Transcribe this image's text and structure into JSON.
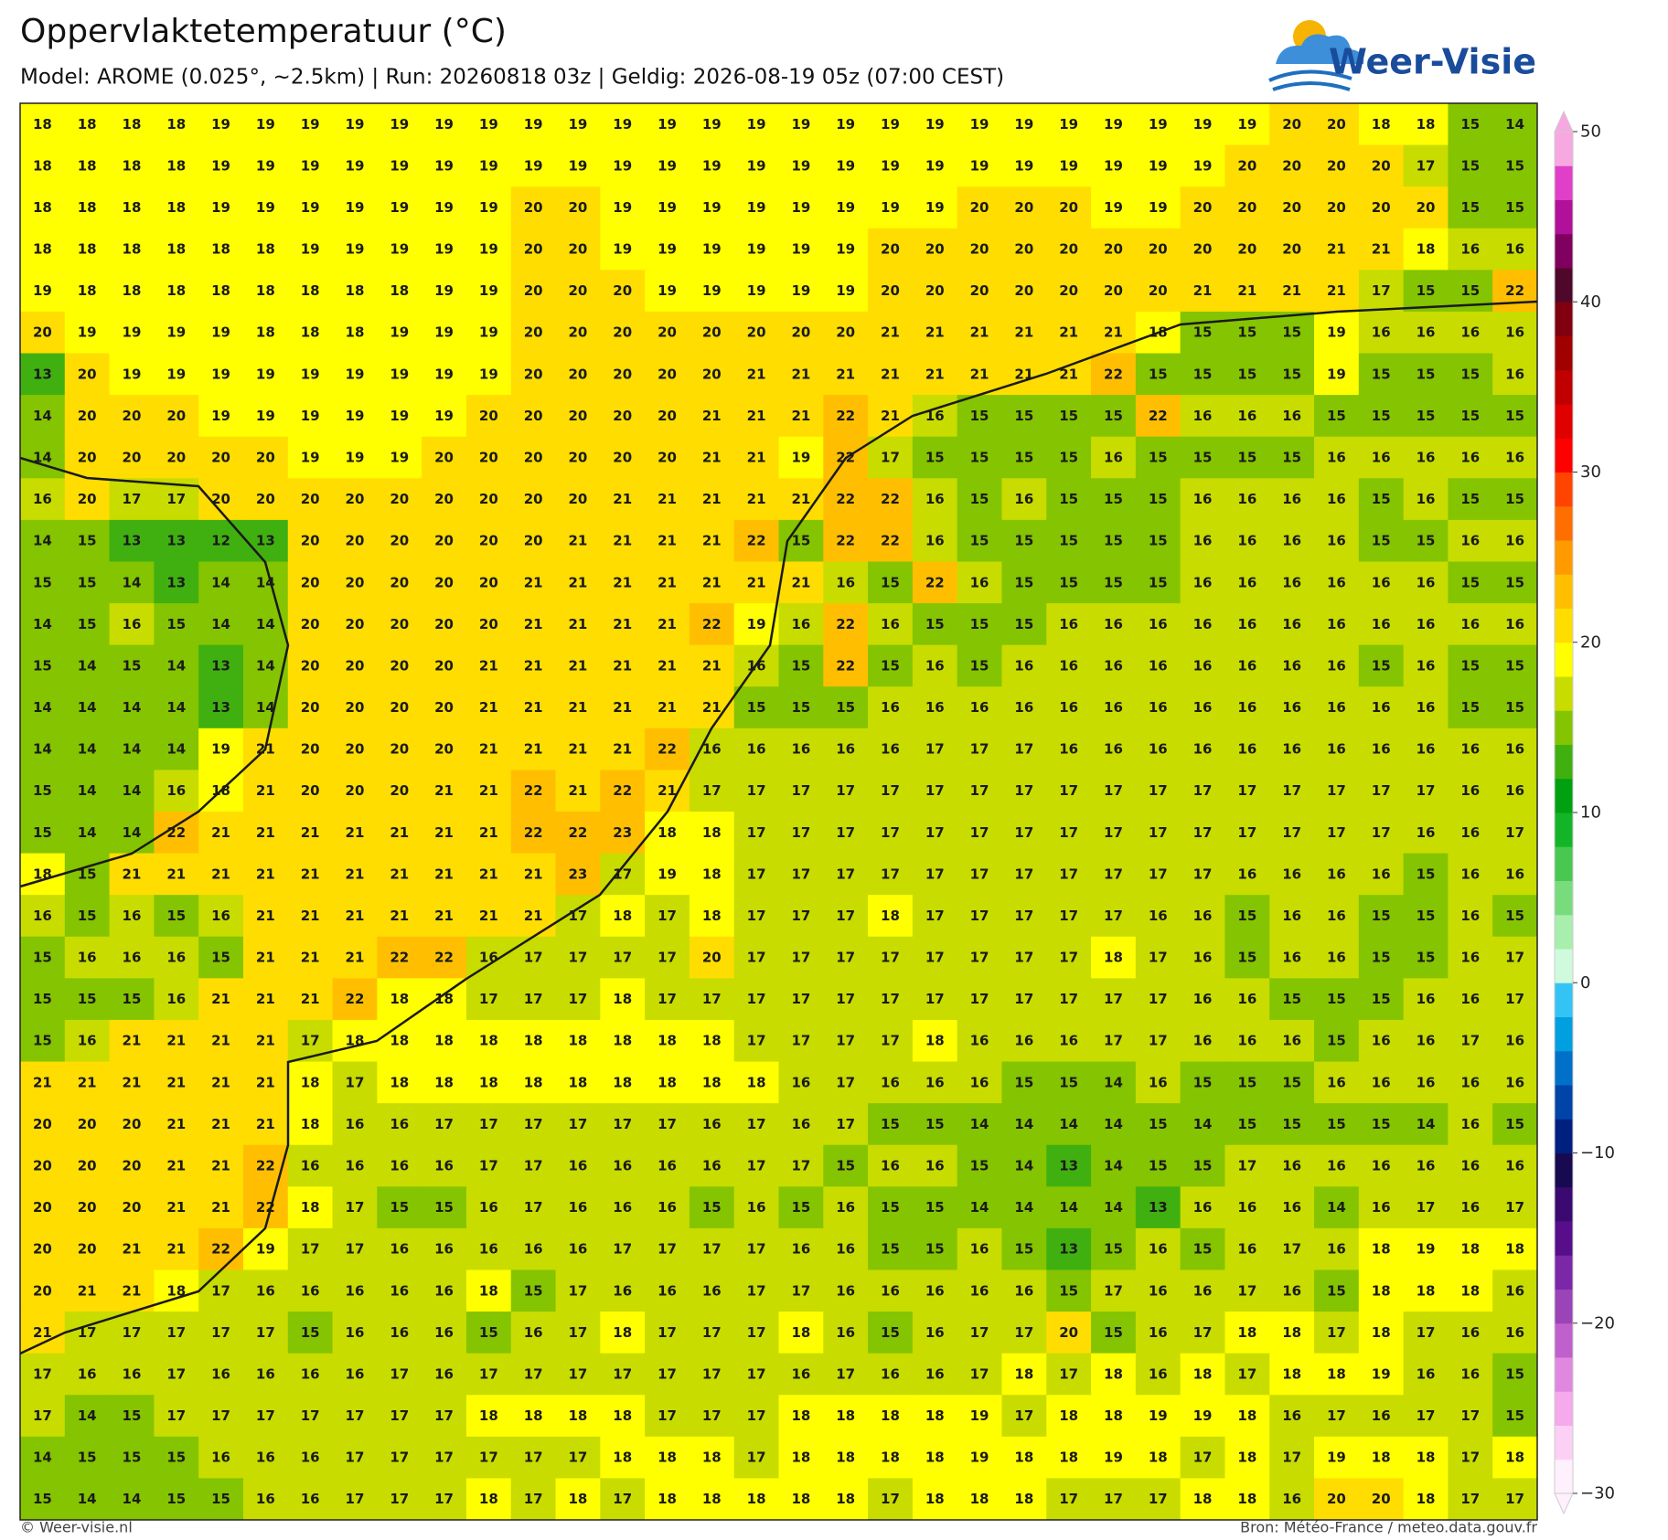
{
  "chart_data": {
    "type": "heatmap",
    "title": "Oppervlaktetemperatuur (°C)",
    "subtitle": "Model: AROME (0.025°, ~2.5km)  |  Run: 20260818 03z  |  Geldig: 2026-08-19 05z (07:00 CEST)",
    "brand": "Weer-Visie",
    "footer_left": "© Weer-visie.nl",
    "footer_right": "Bron: Météo-France / meteo.data.gouv.fr",
    "values": [
      [
        18,
        18,
        18,
        18,
        19,
        19,
        19,
        19,
        19,
        19,
        19,
        19,
        19,
        19,
        19,
        19,
        19,
        19,
        19,
        19,
        19,
        19,
        19,
        19,
        19,
        19,
        19,
        19,
        20,
        20,
        18,
        18,
        15,
        14
      ],
      [
        18,
        18,
        18,
        18,
        19,
        19,
        19,
        19,
        19,
        19,
        19,
        19,
        19,
        19,
        19,
        19,
        19,
        19,
        19,
        19,
        19,
        19,
        19,
        19,
        19,
        19,
        19,
        20,
        20,
        20,
        20,
        17,
        15,
        15
      ],
      [
        18,
        18,
        18,
        18,
        19,
        19,
        19,
        19,
        19,
        19,
        19,
        20,
        20,
        19,
        19,
        19,
        19,
        19,
        19,
        19,
        19,
        20,
        20,
        20,
        19,
        19,
        20,
        20,
        20,
        20,
        20,
        20,
        15,
        15
      ],
      [
        18,
        18,
        18,
        18,
        18,
        18,
        19,
        19,
        19,
        19,
        19,
        20,
        20,
        19,
        19,
        19,
        19,
        19,
        19,
        20,
        20,
        20,
        20,
        20,
        20,
        20,
        20,
        20,
        20,
        21,
        21,
        18,
        16,
        16
      ],
      [
        19,
        18,
        18,
        18,
        18,
        18,
        18,
        18,
        18,
        19,
        19,
        20,
        20,
        20,
        19,
        19,
        19,
        19,
        19,
        20,
        20,
        20,
        20,
        20,
        20,
        20,
        21,
        21,
        21,
        21,
        17,
        15,
        15,
        22
      ],
      [
        20,
        19,
        19,
        19,
        19,
        18,
        18,
        18,
        19,
        19,
        19,
        20,
        20,
        20,
        20,
        20,
        20,
        20,
        20,
        21,
        21,
        21,
        21,
        21,
        21,
        18,
        15,
        15,
        15,
        19,
        16,
        16,
        16,
        16
      ],
      [
        13,
        20,
        19,
        19,
        19,
        19,
        19,
        19,
        19,
        19,
        19,
        20,
        20,
        20,
        20,
        20,
        21,
        21,
        21,
        21,
        21,
        21,
        21,
        21,
        22,
        15,
        15,
        15,
        15,
        19,
        15,
        15,
        15,
        16
      ],
      [
        14,
        20,
        20,
        20,
        19,
        19,
        19,
        19,
        19,
        19,
        20,
        20,
        20,
        20,
        20,
        21,
        21,
        21,
        22,
        21,
        16,
        15,
        15,
        15,
        15,
        22,
        16,
        16,
        16,
        15,
        15,
        15,
        15,
        15
      ],
      [
        14,
        20,
        20,
        20,
        20,
        20,
        19,
        19,
        19,
        20,
        20,
        20,
        20,
        20,
        20,
        21,
        21,
        19,
        22,
        17,
        15,
        15,
        15,
        15,
        16,
        15,
        15,
        15,
        15,
        16,
        16,
        16,
        16,
        16
      ],
      [
        16,
        20,
        17,
        17,
        20,
        20,
        20,
        20,
        20,
        20,
        20,
        20,
        20,
        21,
        21,
        21,
        21,
        21,
        22,
        22,
        16,
        15,
        16,
        15,
        15,
        15,
        16,
        16,
        16,
        16,
        15,
        16,
        15,
        15
      ],
      [
        14,
        15,
        13,
        13,
        12,
        13,
        20,
        20,
        20,
        20,
        20,
        20,
        21,
        21,
        21,
        21,
        22,
        15,
        22,
        22,
        16,
        15,
        15,
        15,
        15,
        15,
        16,
        16,
        16,
        16,
        15,
        15,
        16,
        16
      ],
      [
        15,
        15,
        14,
        13,
        14,
        14,
        20,
        20,
        20,
        20,
        20,
        21,
        21,
        21,
        21,
        21,
        21,
        21,
        16,
        15,
        22,
        16,
        15,
        15,
        15,
        15,
        16,
        16,
        16,
        16,
        16,
        16,
        15,
        15
      ],
      [
        14,
        15,
        16,
        15,
        14,
        14,
        20,
        20,
        20,
        20,
        20,
        21,
        21,
        21,
        21,
        22,
        19,
        16,
        22,
        16,
        15,
        15,
        15,
        16,
        16,
        16,
        16,
        16,
        16,
        16,
        16,
        16,
        16,
        16
      ],
      [
        15,
        14,
        15,
        14,
        13,
        14,
        20,
        20,
        20,
        20,
        21,
        21,
        21,
        21,
        21,
        21,
        16,
        15,
        22,
        15,
        16,
        15,
        16,
        16,
        16,
        16,
        16,
        16,
        16,
        16,
        15,
        16,
        15,
        15
      ],
      [
        14,
        14,
        14,
        14,
        13,
        14,
        20,
        20,
        20,
        20,
        21,
        21,
        21,
        21,
        21,
        21,
        15,
        15,
        15,
        16,
        16,
        16,
        16,
        16,
        16,
        16,
        16,
        16,
        16,
        16,
        16,
        16,
        15,
        15
      ],
      [
        14,
        14,
        14,
        14,
        19,
        21,
        20,
        20,
        20,
        20,
        21,
        21,
        21,
        21,
        22,
        16,
        16,
        16,
        16,
        16,
        17,
        17,
        17,
        16,
        16,
        16,
        16,
        16,
        16,
        16,
        16,
        16,
        16,
        16
      ],
      [
        15,
        14,
        14,
        16,
        18,
        21,
        20,
        20,
        20,
        21,
        21,
        22,
        21,
        22,
        21,
        17,
        17,
        17,
        17,
        17,
        17,
        17,
        17,
        17,
        17,
        17,
        17,
        17,
        17,
        17,
        17,
        17,
        16,
        16
      ],
      [
        15,
        14,
        14,
        22,
        21,
        21,
        21,
        21,
        21,
        21,
        21,
        22,
        22,
        23,
        18,
        18,
        17,
        17,
        17,
        17,
        17,
        17,
        17,
        17,
        17,
        17,
        17,
        17,
        17,
        17,
        17,
        16,
        16,
        17
      ],
      [
        18,
        15,
        21,
        21,
        21,
        21,
        21,
        21,
        21,
        21,
        21,
        21,
        23,
        17,
        19,
        18,
        17,
        17,
        17,
        17,
        17,
        17,
        17,
        17,
        17,
        17,
        17,
        16,
        16,
        16,
        16,
        15,
        16,
        16
      ],
      [
        16,
        15,
        16,
        15,
        16,
        21,
        21,
        21,
        21,
        21,
        21,
        21,
        17,
        18,
        17,
        18,
        17,
        17,
        17,
        18,
        17,
        17,
        17,
        17,
        17,
        16,
        16,
        15,
        16,
        16,
        15,
        15,
        16,
        15
      ],
      [
        15,
        16,
        16,
        16,
        15,
        21,
        21,
        21,
        22,
        22,
        16,
        17,
        17,
        17,
        17,
        20,
        17,
        17,
        17,
        17,
        17,
        17,
        17,
        17,
        18,
        17,
        16,
        15,
        16,
        16,
        15,
        15,
        16,
        17
      ],
      [
        15,
        15,
        15,
        16,
        21,
        21,
        21,
        22,
        18,
        18,
        17,
        17,
        17,
        18,
        17,
        17,
        17,
        17,
        17,
        17,
        17,
        17,
        17,
        17,
        17,
        17,
        16,
        16,
        15,
        15,
        15,
        16,
        16,
        17
      ],
      [
        15,
        16,
        21,
        21,
        21,
        21,
        17,
        18,
        18,
        18,
        18,
        18,
        18,
        18,
        18,
        18,
        17,
        17,
        17,
        17,
        18,
        16,
        16,
        16,
        17,
        17,
        16,
        16,
        16,
        15,
        16,
        16,
        17,
        16
      ],
      [
        21,
        21,
        21,
        21,
        21,
        21,
        18,
        17,
        18,
        18,
        18,
        18,
        18,
        18,
        18,
        18,
        18,
        16,
        17,
        16,
        16,
        16,
        15,
        15,
        14,
        16,
        15,
        15,
        15,
        16,
        16,
        16,
        16,
        16
      ],
      [
        20,
        20,
        20,
        21,
        21,
        21,
        18,
        16,
        16,
        17,
        17,
        17,
        17,
        17,
        17,
        16,
        17,
        16,
        17,
        15,
        15,
        14,
        14,
        14,
        14,
        15,
        14,
        15,
        15,
        15,
        15,
        14,
        16,
        15
      ],
      [
        20,
        20,
        20,
        21,
        21,
        22,
        16,
        16,
        16,
        16,
        17,
        17,
        16,
        16,
        16,
        16,
        17,
        17,
        15,
        16,
        16,
        15,
        14,
        13,
        14,
        15,
        15,
        17,
        16,
        16,
        16,
        16,
        16,
        16
      ],
      [
        20,
        20,
        20,
        21,
        21,
        22,
        18,
        17,
        15,
        15,
        16,
        17,
        16,
        16,
        16,
        15,
        16,
        15,
        16,
        15,
        15,
        14,
        14,
        14,
        14,
        13,
        16,
        16,
        16,
        14,
        16,
        17,
        16,
        17
      ],
      [
        20,
        20,
        21,
        21,
        22,
        19,
        17,
        17,
        16,
        16,
        16,
        16,
        16,
        17,
        17,
        17,
        17,
        16,
        16,
        15,
        15,
        16,
        15,
        13,
        15,
        16,
        15,
        16,
        17,
        16,
        18,
        19,
        18,
        18
      ],
      [
        20,
        21,
        21,
        18,
        17,
        16,
        16,
        16,
        16,
        16,
        18,
        15,
        17,
        16,
        16,
        16,
        17,
        17,
        16,
        16,
        16,
        16,
        16,
        15,
        17,
        16,
        16,
        17,
        16,
        15,
        18,
        18,
        18,
        16
      ],
      [
        21,
        17,
        17,
        17,
        17,
        17,
        15,
        16,
        16,
        16,
        15,
        16,
        17,
        18,
        17,
        17,
        17,
        18,
        16,
        15,
        16,
        17,
        17,
        20,
        15,
        16,
        17,
        18,
        18,
        17,
        18,
        17,
        16,
        16
      ],
      [
        17,
        16,
        16,
        17,
        16,
        16,
        16,
        16,
        17,
        16,
        17,
        17,
        17,
        17,
        17,
        17,
        17,
        16,
        17,
        16,
        16,
        17,
        18,
        17,
        18,
        16,
        18,
        17,
        18,
        18,
        19,
        16,
        16,
        15
      ],
      [
        17,
        14,
        15,
        17,
        17,
        17,
        17,
        17,
        17,
        17,
        18,
        18,
        18,
        18,
        17,
        17,
        17,
        18,
        18,
        18,
        18,
        19,
        17,
        18,
        18,
        19,
        19,
        18,
        16,
        17,
        16,
        17,
        17,
        15
      ],
      [
        14,
        15,
        15,
        15,
        16,
        16,
        16,
        17,
        17,
        17,
        17,
        17,
        17,
        18,
        18,
        18,
        17,
        18,
        18,
        18,
        18,
        19,
        18,
        18,
        19,
        18,
        17,
        18,
        17,
        19,
        18,
        18,
        17,
        18
      ],
      [
        15,
        14,
        14,
        15,
        15,
        16,
        16,
        17,
        17,
        17,
        18,
        17,
        18,
        17,
        18,
        18,
        18,
        18,
        18,
        17,
        18,
        18,
        18,
        17,
        17,
        17,
        18,
        18,
        16,
        20,
        20,
        18,
        17,
        17
      ]
    ],
    "colorbar": {
      "lim": [
        -30,
        50
      ],
      "ticks": [
        50,
        40,
        30,
        20,
        10,
        0,
        {
          "value": -10,
          "label": "−10"
        },
        {
          "value": -20,
          "label": "−20"
        },
        {
          "value": -30,
          "label": "−30"
        }
      ],
      "colors": [
        "#fef0fc",
        "#fcd0f4",
        "#f4aaec",
        "#e088e0",
        "#c060cc",
        "#9a44b8",
        "#7a28a8",
        "#580e8a",
        "#3a0a70",
        "#180a50",
        "#002080",
        "#0044a8",
        "#0070c8",
        "#00a0e0",
        "#33c4f5",
        "#d0fadc",
        "#a8eeac",
        "#78dc7c",
        "#48c850",
        "#14b428",
        "#00a010",
        "#40b010",
        "#84c400",
        "#c8dc00",
        "#ffff00",
        "#ffdd00",
        "#ffbf00",
        "#ff9a00",
        "#ff6e00",
        "#ff4400",
        "#ff0000",
        "#e00000",
        "#c00000",
        "#a00000",
        "#800010",
        "#50082a",
        "#800060",
        "#b0109a",
        "#e040c8",
        "#f8a8e0"
      ]
    }
  }
}
